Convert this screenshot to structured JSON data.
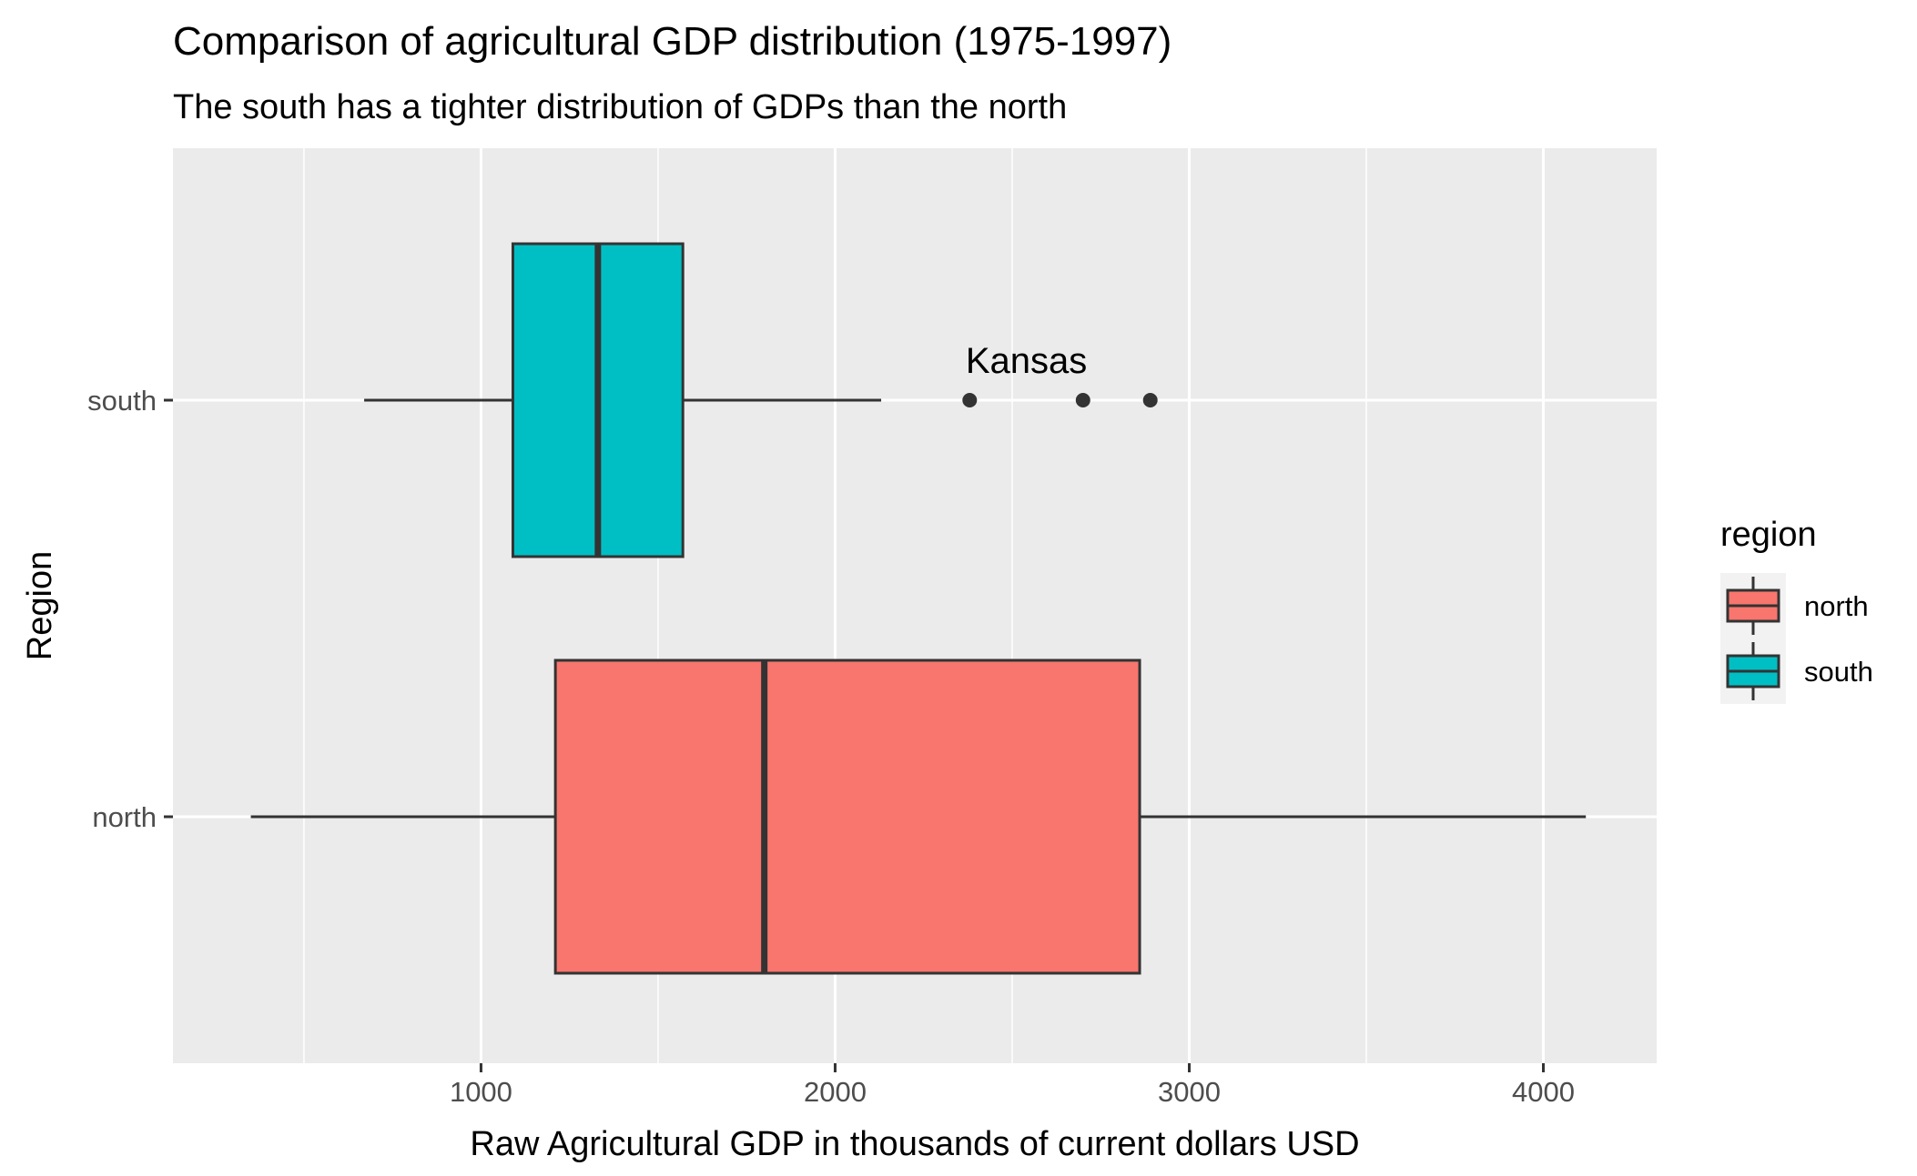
{
  "chart_data": {
    "type": "boxplot",
    "orientation": "horizontal",
    "title": "Comparison of agricultural GDP distribution (1975-1997)",
    "subtitle": "The south has a tighter distribution of GDPs than the north",
    "xlabel": "Raw Agricultural GDP in thousands of current dollars USD",
    "ylabel": "Region",
    "xlim": [
      130,
      4320
    ],
    "xticks": [
      1000,
      2000,
      3000,
      4000
    ],
    "xtick_labels": [
      "1000",
      "2000",
      "3000",
      "4000"
    ],
    "minor_xticks": [
      500,
      1500,
      2500,
      3500
    ],
    "categories": [
      "north",
      "south"
    ],
    "grid": true,
    "background": "#EBEBEB",
    "series": [
      {
        "name": "north",
        "color": "#F8766D",
        "whisker_low": 350,
        "q1": 1210,
        "median": 1800,
        "q3": 2860,
        "whisker_high": 4120,
        "outliers": []
      },
      {
        "name": "south",
        "color": "#00BFC4",
        "whisker_low": 670,
        "q1": 1090,
        "median": 1330,
        "q3": 1570,
        "whisker_high": 2130,
        "outliers": [
          2380,
          2700,
          2890
        ]
      }
    ],
    "annotations": [
      {
        "text": "Kansas",
        "x": 2540,
        "category": "south"
      }
    ],
    "legend": {
      "title": "region",
      "position": "right",
      "items": [
        "north",
        "south"
      ]
    }
  }
}
